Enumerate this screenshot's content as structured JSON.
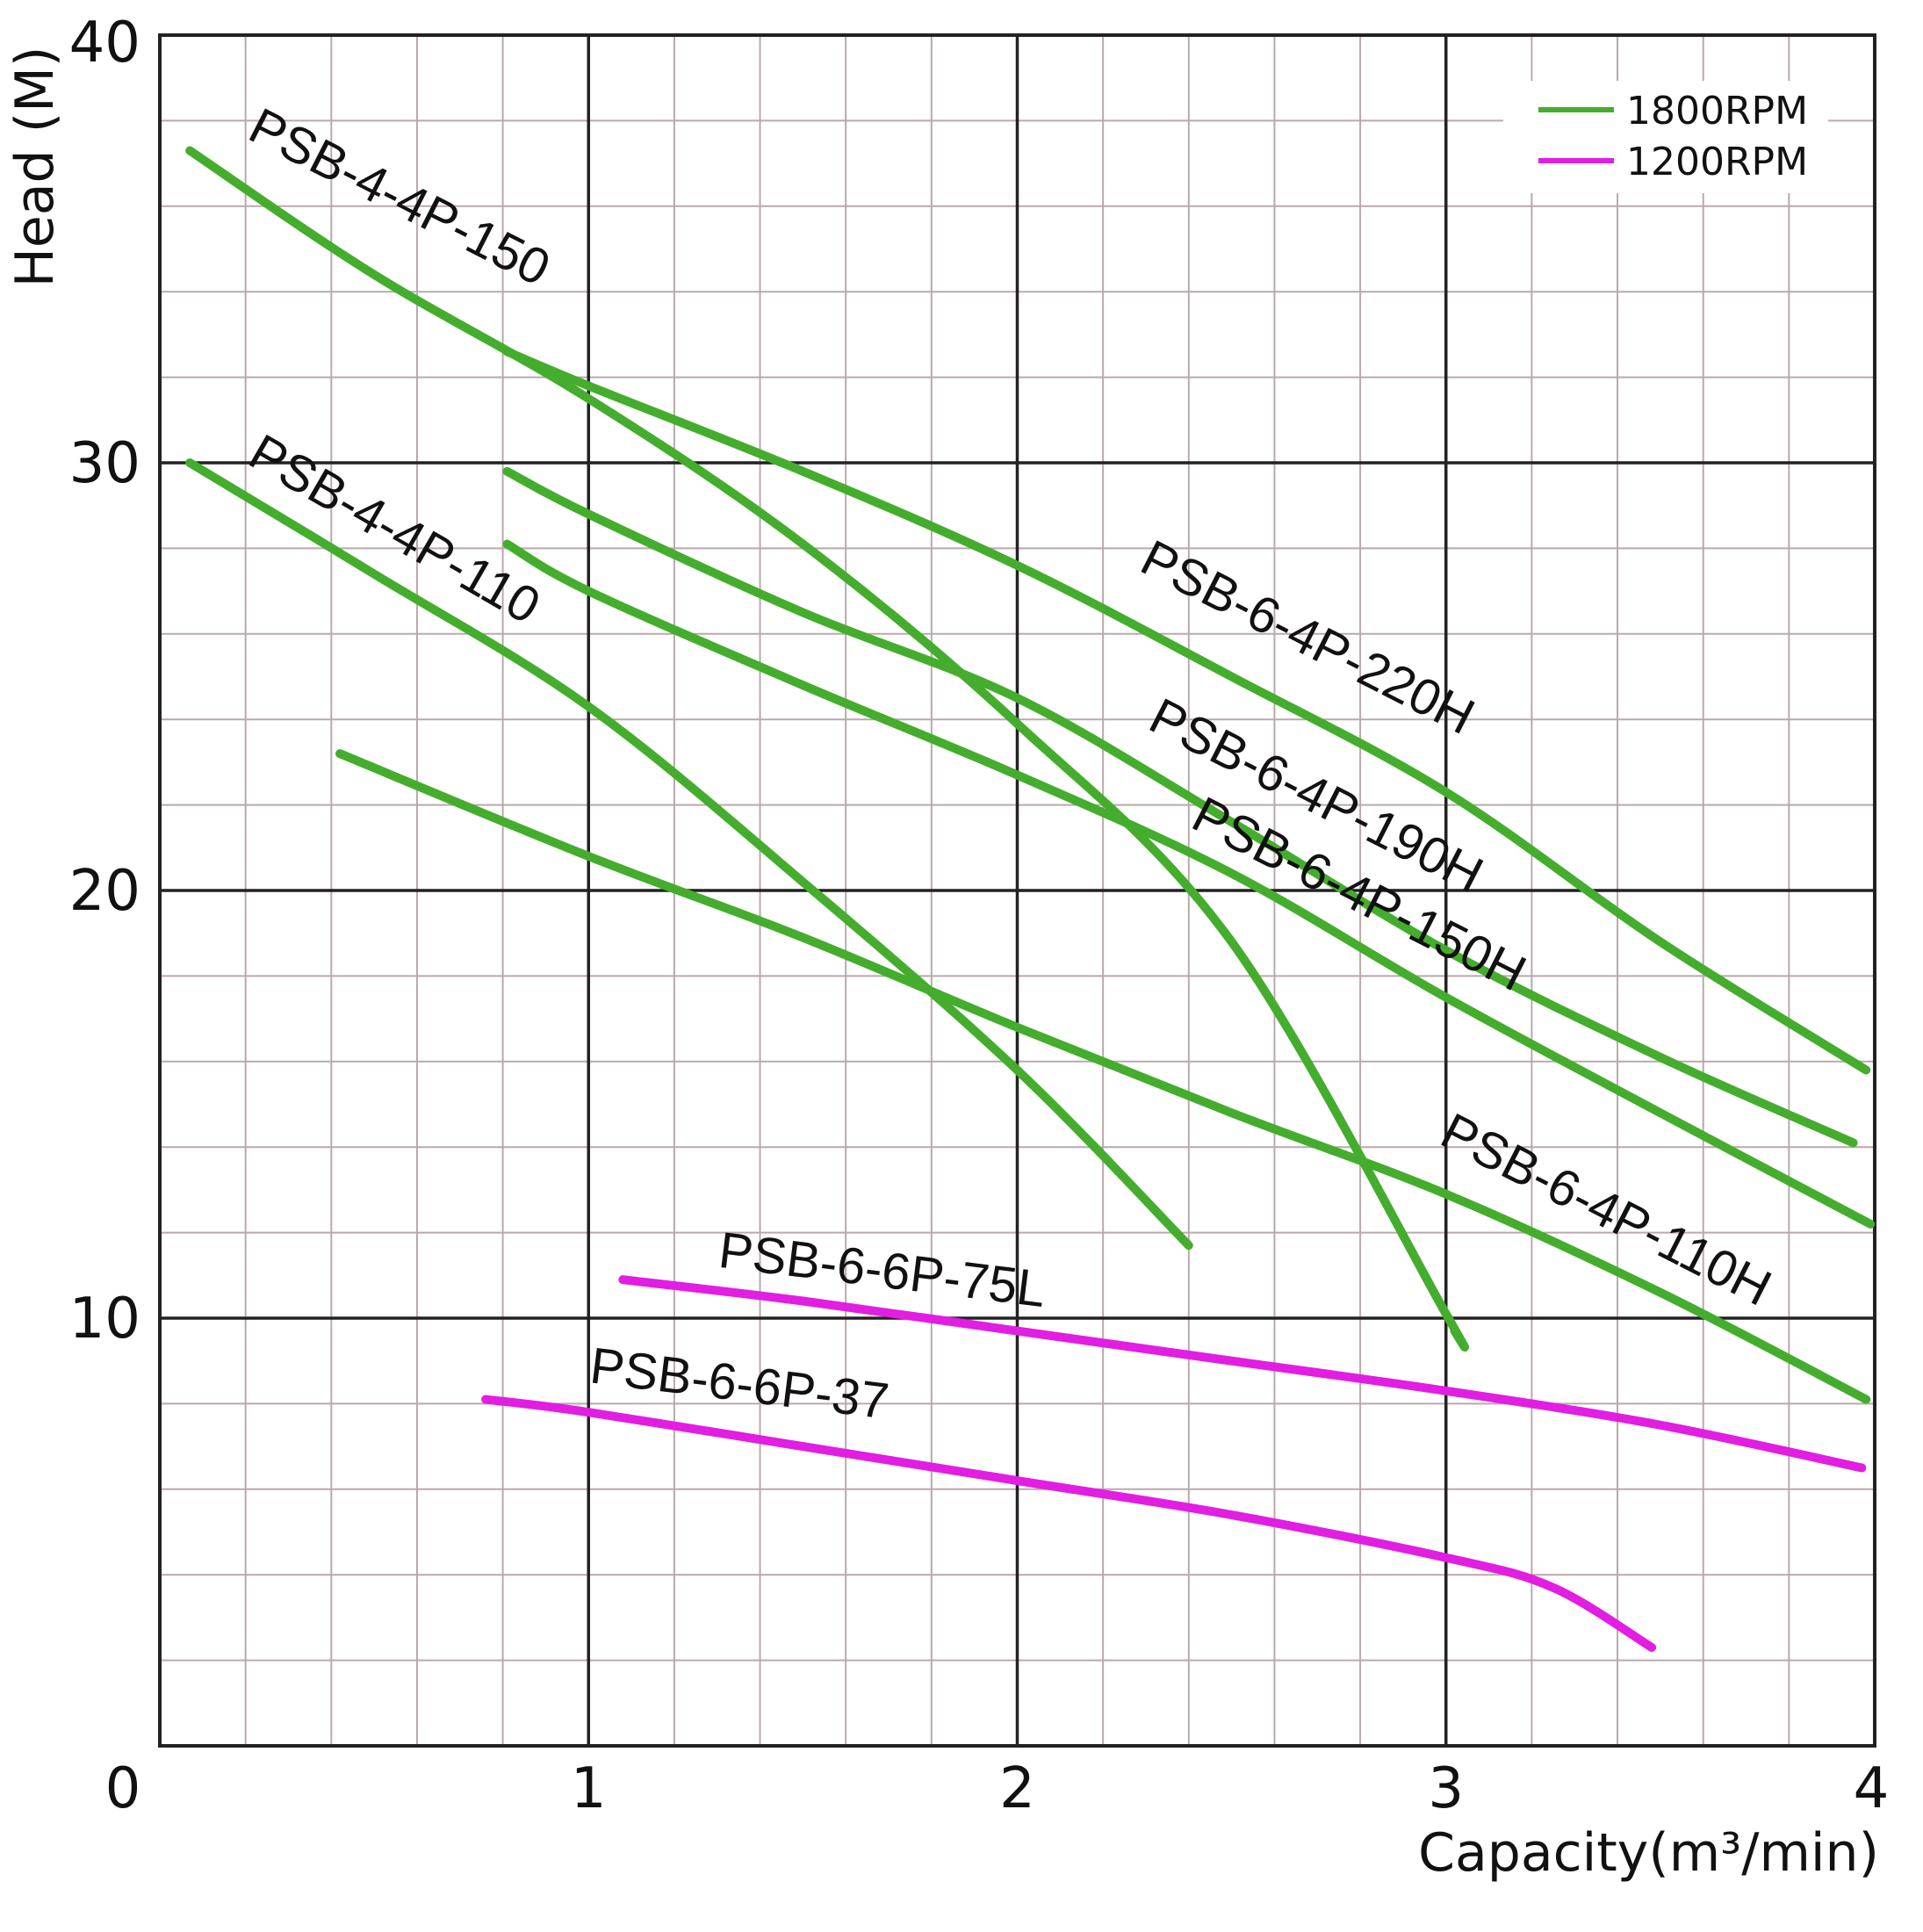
{
  "chart_data": {
    "type": "line",
    "title": "",
    "xlabel": "Capacity(m³/min)",
    "ylabel": "Head (M)",
    "xlim": [
      0,
      4
    ],
    "ylim": [
      0,
      40
    ],
    "xticks": [
      0,
      1,
      2,
      3,
      4
    ],
    "xtick_labels": [
      "0",
      "1",
      "2",
      "3",
      "4"
    ],
    "yticks": [
      10,
      20,
      30,
      40
    ],
    "ytick_labels": [
      "10",
      "20",
      "30",
      "40"
    ],
    "grid": true,
    "minor_grid": {
      "x_step": 0.2,
      "y_step": 2
    },
    "legend": {
      "position": "top-right",
      "entries": [
        {
          "label": "1800RPM",
          "color": "#44ad2d"
        },
        {
          "label": "1200RPM",
          "color": "#e11ee1"
        }
      ]
    },
    "series": [
      {
        "name": "PSB-4-4P-150",
        "rpm": "1800RPM",
        "color": "#44ad2d",
        "label": {
          "text": "PSB-4-4P-150",
          "x": 0.2,
          "y": 37.6,
          "angle": 27
        },
        "points": [
          [
            0.07,
            37.3
          ],
          [
            0.5,
            34.4
          ],
          [
            1.0,
            31.5
          ],
          [
            1.5,
            28.1
          ],
          [
            2.0,
            23.9
          ],
          [
            2.5,
            18.8
          ],
          [
            3.0,
            10.1
          ],
          [
            3.02,
            9.7
          ]
        ]
      },
      {
        "name": "PSB-6-4P-220H",
        "rpm": "1800RPM",
        "color": "#44ad2d",
        "label": {
          "text": "PSB-6-4P-220H",
          "x": 2.28,
          "y": 27.5,
          "angle": 27
        },
        "points": [
          [
            0.81,
            32.6
          ],
          [
            1.0,
            31.8
          ],
          [
            1.5,
            29.8
          ],
          [
            2.0,
            27.6
          ],
          [
            2.5,
            25.0
          ],
          [
            3.0,
            22.3
          ],
          [
            3.5,
            18.8
          ],
          [
            3.98,
            15.8
          ]
        ]
      },
      {
        "name": "PSB-6-4P-190H",
        "rpm": "1800RPM",
        "color": "#44ad2d",
        "label": {
          "text": "PSB-6-4P-190H",
          "x": 2.3,
          "y": 23.8,
          "angle": 27
        },
        "points": [
          [
            0.81,
            29.8
          ],
          [
            1.0,
            28.8
          ],
          [
            1.5,
            26.5
          ],
          [
            2.0,
            24.5
          ],
          [
            2.5,
            21.6
          ],
          [
            3.0,
            18.6
          ],
          [
            3.5,
            16.1
          ],
          [
            3.95,
            14.1
          ]
        ]
      },
      {
        "name": "PSB-6-4P-150H",
        "rpm": "1800RPM",
        "color": "#44ad2d",
        "label": {
          "text": "PSB-6-4P-150H",
          "x": 2.4,
          "y": 21.5,
          "angle": 27
        },
        "points": [
          [
            0.81,
            28.1
          ],
          [
            1.0,
            27.0
          ],
          [
            1.5,
            24.8
          ],
          [
            2.0,
            22.7
          ],
          [
            2.5,
            20.4
          ],
          [
            3.0,
            17.5
          ],
          [
            3.5,
            14.8
          ],
          [
            3.99,
            12.2
          ]
        ]
      },
      {
        "name": "PSB-4-4P-110",
        "rpm": "1800RPM",
        "color": "#44ad2d",
        "label": {
          "text": "PSB-4-4P-110",
          "x": 0.2,
          "y": 30.0,
          "angle": 30
        },
        "points": [
          [
            0.07,
            30.0
          ],
          [
            0.5,
            27.4
          ],
          [
            1.0,
            24.3
          ],
          [
            1.5,
            20.2
          ],
          [
            2.0,
            15.8
          ],
          [
            2.4,
            11.7
          ]
        ]
      },
      {
        "name": "PSB-6-4P-110H",
        "rpm": "1800RPM",
        "color": "#44ad2d",
        "label": {
          "text": "PSB-6-4P-110H",
          "x": 2.98,
          "y": 14.1,
          "angle": 27
        },
        "points": [
          [
            0.42,
            23.2
          ],
          [
            1.0,
            20.8
          ],
          [
            1.5,
            18.9
          ],
          [
            2.0,
            16.8
          ],
          [
            2.5,
            14.8
          ],
          [
            3.0,
            12.9
          ],
          [
            3.5,
            10.6
          ],
          [
            3.98,
            8.1
          ]
        ]
      },
      {
        "name": "PSB-6-6P-75L",
        "rpm": "1200RPM",
        "color": "#e11ee1",
        "label": {
          "text": "PSB-6-6P-75L",
          "x": 1.3,
          "y": 11.2,
          "angle": 7
        },
        "points": [
          [
            1.08,
            10.9
          ],
          [
            1.5,
            10.4
          ],
          [
            2.0,
            9.7
          ],
          [
            2.5,
            9.0
          ],
          [
            3.0,
            8.3
          ],
          [
            3.5,
            7.5
          ],
          [
            3.97,
            6.5
          ]
        ]
      },
      {
        "name": "PSB-6-6P-37",
        "rpm": "1200RPM",
        "color": "#e11ee1",
        "label": {
          "text": "PSB-6-6P-37",
          "x": 1.0,
          "y": 8.5,
          "angle": 7
        },
        "points": [
          [
            0.76,
            8.1
          ],
          [
            1.0,
            7.8
          ],
          [
            1.5,
            7.0
          ],
          [
            2.0,
            6.2
          ],
          [
            2.5,
            5.4
          ],
          [
            3.0,
            4.4
          ],
          [
            3.25,
            3.7
          ],
          [
            3.48,
            2.3
          ]
        ]
      }
    ]
  }
}
